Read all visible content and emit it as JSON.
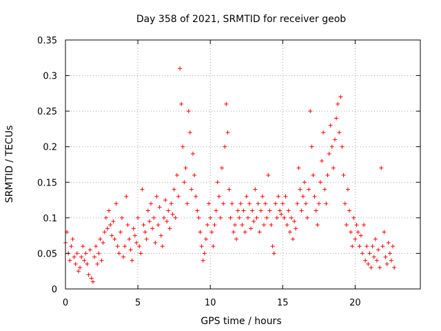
{
  "chart_data": {
    "type": "scatter",
    "title": "Day 358 of 2021, SRMTID for receiver geob",
    "xlabel": "GPS time / hours",
    "ylabel": "SRMTID / TECUs",
    "xlim": [
      0,
      24.5
    ],
    "ylim": [
      0,
      0.35
    ],
    "xticks": [
      0,
      5,
      10,
      15,
      20
    ],
    "xtick_labels": [
      "0",
      "5",
      "10",
      "15",
      "20"
    ],
    "yticks": [
      0,
      0.05,
      0.1,
      0.15,
      0.2,
      0.25,
      0.3,
      0.35
    ],
    "ytick_labels": [
      "0",
      "0.05",
      "0.1",
      "0.15",
      "0.2",
      "0.25",
      "0.3",
      "0.35"
    ],
    "grid": true,
    "marker": "+",
    "color": "#ff0000",
    "series": [
      {
        "name": "SRMTID",
        "points": [
          [
            0.0,
            0.065
          ],
          [
            0.1,
            0.08
          ],
          [
            0.2,
            0.05
          ],
          [
            0.3,
            0.04
          ],
          [
            0.4,
            0.06
          ],
          [
            0.5,
            0.07
          ],
          [
            0.6,
            0.045
          ],
          [
            0.7,
            0.035
          ],
          [
            0.8,
            0.05
          ],
          [
            0.9,
            0.025
          ],
          [
            1.0,
            0.03
          ],
          [
            1.1,
            0.045
          ],
          [
            1.2,
            0.06
          ],
          [
            1.3,
            0.04
          ],
          [
            1.4,
            0.05
          ],
          [
            1.5,
            0.035
          ],
          [
            1.6,
            0.02
          ],
          [
            1.7,
            0.055
          ],
          [
            1.8,
            0.015
          ],
          [
            1.9,
            0.01
          ],
          [
            2.0,
            0.045
          ],
          [
            2.1,
            0.06
          ],
          [
            2.2,
            0.035
          ],
          [
            2.3,
            0.05
          ],
          [
            2.4,
            0.07
          ],
          [
            2.5,
            0.04
          ],
          [
            2.6,
            0.065
          ],
          [
            2.7,
            0.08
          ],
          [
            2.8,
            0.1
          ],
          [
            2.9,
            0.085
          ],
          [
            3.0,
            0.11
          ],
          [
            3.1,
            0.09
          ],
          [
            3.2,
            0.075
          ],
          [
            3.3,
            0.095
          ],
          [
            3.4,
            0.07
          ],
          [
            3.5,
            0.12
          ],
          [
            3.6,
            0.06
          ],
          [
            3.7,
            0.05
          ],
          [
            3.8,
            0.08
          ],
          [
            3.9,
            0.1
          ],
          [
            4.0,
            0.045
          ],
          [
            4.1,
            0.06
          ],
          [
            4.2,
            0.13
          ],
          [
            4.3,
            0.09
          ],
          [
            4.4,
            0.07
          ],
          [
            4.5,
            0.055
          ],
          [
            4.6,
            0.04
          ],
          [
            4.7,
            0.085
          ],
          [
            4.8,
            0.075
          ],
          [
            4.9,
            0.065
          ],
          [
            5.0,
            0.1
          ],
          [
            5.1,
            0.06
          ],
          [
            5.2,
            0.05
          ],
          [
            5.3,
            0.14
          ],
          [
            5.4,
            0.09
          ],
          [
            5.5,
            0.08
          ],
          [
            5.6,
            0.07
          ],
          [
            5.7,
            0.11
          ],
          [
            5.8,
            0.095
          ],
          [
            5.9,
            0.12
          ],
          [
            6.0,
            0.085
          ],
          [
            6.1,
            0.1
          ],
          [
            6.2,
            0.065
          ],
          [
            6.3,
            0.13
          ],
          [
            6.4,
            0.09
          ],
          [
            6.5,
            0.115
          ],
          [
            6.6,
            0.075
          ],
          [
            6.7,
            0.06
          ],
          [
            6.8,
            0.1
          ],
          [
            6.9,
            0.125
          ],
          [
            7.0,
            0.095
          ],
          [
            7.1,
            0.11
          ],
          [
            7.2,
            0.085
          ],
          [
            7.3,
            0.12
          ],
          [
            7.4,
            0.105
          ],
          [
            7.5,
            0.14
          ],
          [
            7.6,
            0.1
          ],
          [
            7.7,
            0.16
          ],
          [
            7.8,
            0.13
          ],
          [
            7.9,
            0.31
          ],
          [
            8.0,
            0.26
          ],
          [
            8.1,
            0.2
          ],
          [
            8.2,
            0.15
          ],
          [
            8.3,
            0.17
          ],
          [
            8.4,
            0.12
          ],
          [
            8.5,
            0.25
          ],
          [
            8.6,
            0.22
          ],
          [
            8.7,
            0.14
          ],
          [
            8.8,
            0.19
          ],
          [
            8.9,
            0.16
          ],
          [
            9.0,
            0.13
          ],
          [
            9.1,
            0.11
          ],
          [
            9.2,
            0.1
          ],
          [
            9.3,
            0.08
          ],
          [
            9.4,
            0.06
          ],
          [
            9.5,
            0.04
          ],
          [
            9.6,
            0.05
          ],
          [
            9.7,
            0.07
          ],
          [
            9.8,
            0.09
          ],
          [
            9.9,
            0.12
          ],
          [
            10.0,
            0.1
          ],
          [
            10.1,
            0.08
          ],
          [
            10.2,
            0.06
          ],
          [
            10.3,
            0.09
          ],
          [
            10.4,
            0.11
          ],
          [
            10.5,
            0.15
          ],
          [
            10.6,
            0.13
          ],
          [
            10.7,
            0.1
          ],
          [
            10.8,
            0.17
          ],
          [
            10.9,
            0.12
          ],
          [
            11.0,
            0.2
          ],
          [
            11.1,
            0.26
          ],
          [
            11.2,
            0.22
          ],
          [
            11.3,
            0.14
          ],
          [
            11.4,
            0.1
          ],
          [
            11.5,
            0.12
          ],
          [
            11.6,
            0.08
          ],
          [
            11.7,
            0.09
          ],
          [
            11.8,
            0.07
          ],
          [
            11.9,
            0.11
          ],
          [
            12.0,
            0.1
          ],
          [
            12.1,
            0.12
          ],
          [
            12.2,
            0.09
          ],
          [
            12.3,
            0.11
          ],
          [
            12.4,
            0.08
          ],
          [
            12.5,
            0.13
          ],
          [
            12.6,
            0.1
          ],
          [
            12.7,
            0.12
          ],
          [
            12.8,
            0.085
          ],
          [
            12.9,
            0.11
          ],
          [
            13.0,
            0.095
          ],
          [
            13.1,
            0.14
          ],
          [
            13.2,
            0.1
          ],
          [
            13.3,
            0.12
          ],
          [
            13.4,
            0.08
          ],
          [
            13.5,
            0.11
          ],
          [
            13.6,
            0.13
          ],
          [
            13.7,
            0.09
          ],
          [
            13.8,
            0.12
          ],
          [
            13.9,
            0.1
          ],
          [
            14.0,
            0.16
          ],
          [
            14.1,
            0.11
          ],
          [
            14.2,
            0.09
          ],
          [
            14.3,
            0.06
          ],
          [
            14.4,
            0.05
          ],
          [
            14.5,
            0.12
          ],
          [
            14.6,
            0.1
          ],
          [
            14.7,
            0.13
          ],
          [
            14.8,
            0.11
          ],
          [
            14.9,
            0.105
          ],
          [
            15.0,
            0.12
          ],
          [
            15.1,
            0.1
          ],
          [
            15.2,
            0.13
          ],
          [
            15.3,
            0.09
          ],
          [
            15.4,
            0.11
          ],
          [
            15.5,
            0.08
          ],
          [
            15.6,
            0.1
          ],
          [
            15.7,
            0.07
          ],
          [
            15.8,
            0.095
          ],
          [
            15.9,
            0.085
          ],
          [
            16.0,
            0.12
          ],
          [
            16.1,
            0.17
          ],
          [
            16.2,
            0.14
          ],
          [
            16.3,
            0.11
          ],
          [
            16.4,
            0.13
          ],
          [
            16.5,
            0.15
          ],
          [
            16.6,
            0.12
          ],
          [
            16.7,
            0.1
          ],
          [
            16.8,
            0.14
          ],
          [
            16.9,
            0.25
          ],
          [
            17.0,
            0.2
          ],
          [
            17.1,
            0.16
          ],
          [
            17.2,
            0.13
          ],
          [
            17.3,
            0.11
          ],
          [
            17.4,
            0.09
          ],
          [
            17.5,
            0.12
          ],
          [
            17.6,
            0.15
          ],
          [
            17.7,
            0.18
          ],
          [
            17.8,
            0.22
          ],
          [
            17.9,
            0.14
          ],
          [
            18.0,
            0.12
          ],
          [
            18.1,
            0.16
          ],
          [
            18.2,
            0.19
          ],
          [
            18.3,
            0.23
          ],
          [
            18.4,
            0.2
          ],
          [
            18.5,
            0.17
          ],
          [
            18.6,
            0.21
          ],
          [
            18.7,
            0.24
          ],
          [
            18.8,
            0.26
          ],
          [
            18.9,
            0.22
          ],
          [
            19.0,
            0.27
          ],
          [
            19.1,
            0.2
          ],
          [
            19.2,
            0.16
          ],
          [
            19.3,
            0.12
          ],
          [
            19.4,
            0.09
          ],
          [
            19.5,
            0.14
          ],
          [
            19.6,
            0.11
          ],
          [
            19.7,
            0.08
          ],
          [
            19.8,
            0.06
          ],
          [
            19.9,
            0.1
          ],
          [
            20.0,
            0.07
          ],
          [
            20.1,
            0.09
          ],
          [
            20.2,
            0.08
          ],
          [
            20.3,
            0.06
          ],
          [
            20.4,
            0.075
          ],
          [
            20.5,
            0.05
          ],
          [
            20.6,
            0.09
          ],
          [
            20.7,
            0.04
          ],
          [
            20.8,
            0.06
          ],
          [
            20.9,
            0.035
          ],
          [
            21.0,
            0.05
          ],
          [
            21.1,
            0.03
          ],
          [
            21.2,
            0.06
          ],
          [
            21.3,
            0.045
          ],
          [
            21.4,
            0.07
          ],
          [
            21.5,
            0.04
          ],
          [
            21.6,
            0.055
          ],
          [
            21.7,
            0.03
          ],
          [
            21.8,
            0.17
          ],
          [
            21.9,
            0.06
          ],
          [
            22.0,
            0.08
          ],
          [
            22.1,
            0.045
          ],
          [
            22.2,
            0.035
          ],
          [
            22.3,
            0.065
          ],
          [
            22.4,
            0.05
          ],
          [
            22.5,
            0.04
          ],
          [
            22.6,
            0.06
          ],
          [
            22.7,
            0.03
          ]
        ]
      }
    ]
  }
}
